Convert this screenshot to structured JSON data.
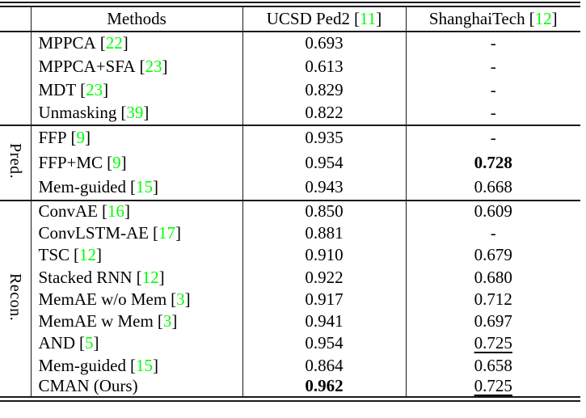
{
  "colors": {
    "citation_green": "#00ff00",
    "text": "#000000",
    "rule": "#1a1a1a"
  },
  "header": {
    "methods": "Methods",
    "ucsd": {
      "label": "UCSD Ped2",
      "cite_l": "[",
      "cite": "11",
      "cite_r": "]"
    },
    "shtech": {
      "label": "ShanghaiTech",
      "cite_l": "[",
      "cite": "12",
      "cite_r": "]"
    }
  },
  "groups": {
    "pred": "Pred.",
    "recon": "Recon."
  },
  "rows": [
    {
      "method": "MPPCA",
      "cite_l": "[",
      "cite": "22",
      "cite_r": "]",
      "ucsd": "0.693",
      "sh": "-"
    },
    {
      "method": "MPPCA+SFA",
      "cite_l": "[",
      "cite": "23",
      "cite_r": "]",
      "ucsd": "0.613",
      "sh": "-"
    },
    {
      "method": "MDT",
      "cite_l": "[",
      "cite": "23",
      "cite_r": "]",
      "ucsd": "0.829",
      "sh": "-"
    },
    {
      "method": "Unmasking",
      "cite_l": "[",
      "cite": "39",
      "cite_r": "]",
      "ucsd": "0.822",
      "sh": "-"
    },
    {
      "method": "FFP",
      "cite_l": "[",
      "cite": "9",
      "cite_r": "]",
      "ucsd": "0.935",
      "sh": "-"
    },
    {
      "method": "FFP+MC",
      "cite_l": "[",
      "cite": "9",
      "cite_r": "]",
      "ucsd": "0.954",
      "sh": "0.728"
    },
    {
      "method": "Mem-guided",
      "cite_l": "[",
      "cite": "15",
      "cite_r": "]",
      "ucsd": "0.943",
      "sh": "0.668"
    },
    {
      "method": "ConvAE",
      "cite_l": "[",
      "cite": "16",
      "cite_r": "]",
      "ucsd": "0.850",
      "sh": "0.609"
    },
    {
      "method": "ConvLSTM-AE",
      "cite_l": "[",
      "cite": "17",
      "cite_r": "]",
      "ucsd": "0.881",
      "sh": "-"
    },
    {
      "method": "TSC",
      "cite_l": "[",
      "cite": "12",
      "cite_r": "]",
      "ucsd": "0.910",
      "sh": "0.679"
    },
    {
      "method": "Stacked RNN",
      "cite_l": "[",
      "cite": "12",
      "cite_r": "]",
      "ucsd": "0.922",
      "sh": "0.680"
    },
    {
      "method": "MemAE w/o Mem",
      "cite_l": "[",
      "cite": "3",
      "cite_r": "]",
      "ucsd": "0.917",
      "sh": "0.712"
    },
    {
      "method": "MemAE w Mem",
      "cite_l": "[",
      "cite": "3",
      "cite_r": "]",
      "ucsd": "0.941",
      "sh": "0.697"
    },
    {
      "method": "AND",
      "cite_l": "[",
      "cite": "5",
      "cite_r": "]",
      "ucsd": "0.954",
      "sh": "0.725"
    },
    {
      "method": "Mem-guided",
      "cite_l": "[",
      "cite": "15",
      "cite_r": "]",
      "ucsd": "0.864",
      "sh": "0.658"
    },
    {
      "method": "CMAN (Ours)",
      "cite_l": "",
      "cite": "",
      "cite_r": "",
      "ucsd": "0.962",
      "sh": "0.725"
    }
  ],
  "chart_data": {
    "type": "table",
    "title": "AUC comparison on UCSD Ped2 and ShanghaiTech",
    "columns": [
      "Methods",
      "UCSD Ped2 [11]",
      "ShanghaiTech [12]"
    ],
    "row_groups": [
      {
        "group": "",
        "rows": [
          [
            "MPPCA [22]",
            0.693,
            null
          ],
          [
            "MPPCA+SFA [23]",
            0.613,
            null
          ],
          [
            "MDT [23]",
            0.829,
            null
          ],
          [
            "Unmasking [39]",
            0.822,
            null
          ]
        ]
      },
      {
        "group": "Pred.",
        "rows": [
          [
            "FFP [9]",
            0.935,
            null
          ],
          [
            "FFP+MC [9]",
            0.954,
            0.728
          ],
          [
            "Mem-guided [15]",
            0.943,
            0.668
          ]
        ]
      },
      {
        "group": "Recon.",
        "rows": [
          [
            "ConvAE [16]",
            0.85,
            0.609
          ],
          [
            "ConvLSTM-AE [17]",
            0.881,
            null
          ],
          [
            "TSC [12]",
            0.91,
            0.679
          ],
          [
            "Stacked RNN [12]",
            0.922,
            0.68
          ],
          [
            "MemAE w/o Mem [3]",
            0.917,
            0.712
          ],
          [
            "MemAE w Mem [3]",
            0.941,
            0.697
          ],
          [
            "AND [5]",
            0.954,
            0.725
          ],
          [
            "Mem-guided [15]",
            0.864,
            0.658
          ],
          [
            "CMAN (Ours)",
            0.962,
            0.725
          ]
        ]
      }
    ],
    "emphasis": {
      "bold_best": [
        "FFP+MC ShanghaiTech 0.728",
        "CMAN (Ours) UCSD Ped2 0.962"
      ],
      "underlined_second": [
        "AND ShanghaiTech 0.725",
        "CMAN (Ours) ShanghaiTech 0.725"
      ]
    }
  }
}
